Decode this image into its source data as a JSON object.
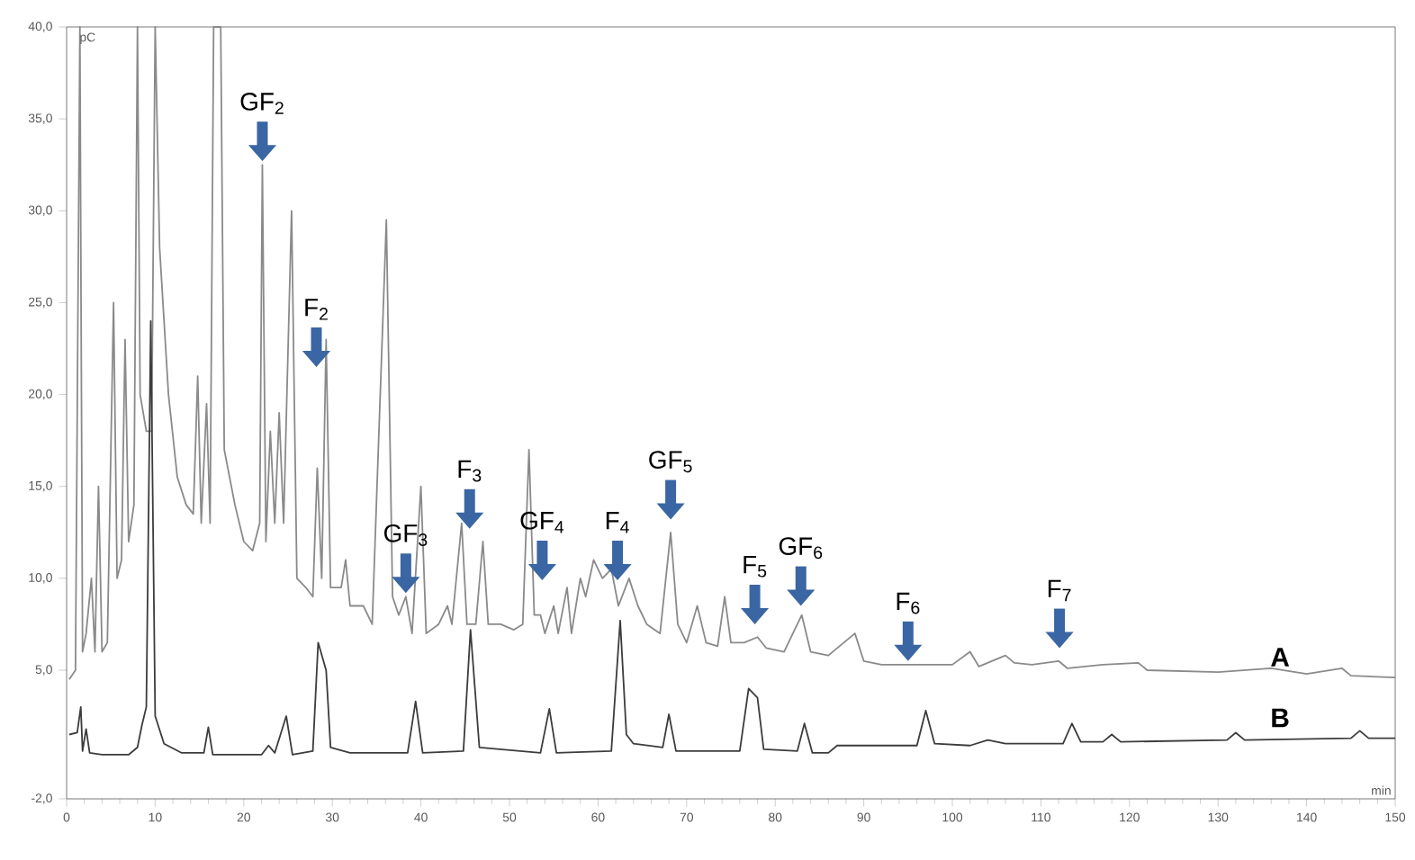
{
  "chart_data": {
    "type": "line",
    "xlabel": "min",
    "ylabel": "pC",
    "xlim": [
      0,
      150
    ],
    "ylim": [
      -2,
      40
    ],
    "xticks": [
      0,
      10,
      20,
      30,
      40,
      50,
      60,
      70,
      80,
      90,
      100,
      110,
      120,
      130,
      140,
      150
    ],
    "yticks": [
      {
        "value": -2,
        "label": "-2,0"
      },
      {
        "value": 5,
        "label": "5,0"
      },
      {
        "value": 10,
        "label": "10,0"
      },
      {
        "value": 15,
        "label": "15,0"
      },
      {
        "value": 20,
        "label": "20,0"
      },
      {
        "value": 25,
        "label": "25,0"
      },
      {
        "value": 30,
        "label": "30,0"
      },
      {
        "value": 35,
        "label": "35,0"
      },
      {
        "value": 40,
        "label": "40,0"
      }
    ],
    "grid": false,
    "series": [
      {
        "name": "A",
        "color": "#8a8a8a",
        "x": [
          0.3,
          1.0,
          1.5,
          1.8,
          2.2,
          2.8,
          3.2,
          3.6,
          4.0,
          4.6,
          5.3,
          5.7,
          6.2,
          6.6,
          7.0,
          7.6,
          8.0,
          8.3,
          9.0,
          9.6,
          10.0,
          10.5,
          11.5,
          12.5,
          13.5,
          14.3,
          14.8,
          15.2,
          15.8,
          16.2,
          16.6,
          17.4,
          17.8,
          19,
          20,
          21,
          21.8,
          22.1,
          22.5,
          23.0,
          23.5,
          24.0,
          24.5,
          25.4,
          26,
          27,
          27.8,
          28.3,
          28.8,
          29.3,
          29.8,
          31,
          31.5,
          32,
          33.5,
          34.5,
          36.1,
          36.8,
          37.5,
          38.3,
          39,
          40.0,
          40.6,
          42,
          43,
          43.5,
          44.6,
          45.2,
          46.2,
          47,
          47.6,
          49,
          50.5,
          51.5,
          52.2,
          52.8,
          53.5,
          54,
          55,
          55.5,
          56.5,
          57,
          58,
          58.6,
          59.5,
          60.5,
          61.5,
          62.3,
          63.5,
          64.5,
          65.5,
          67,
          68.2,
          69,
          70,
          71.2,
          72.2,
          73.5,
          74.3,
          75,
          76.5,
          78,
          79,
          81,
          83,
          84,
          86,
          89,
          90,
          92,
          95,
          100,
          102,
          103,
          106,
          107,
          109,
          112,
          113,
          117,
          121,
          122,
          130,
          136,
          140,
          144,
          145,
          150
        ],
        "values": [
          4.5,
          5.0,
          40,
          6,
          7,
          10,
          6,
          15,
          6,
          6.5,
          25,
          10,
          11,
          23,
          12,
          14,
          40,
          20,
          18,
          18,
          40,
          28,
          20,
          15.5,
          14,
          13.5,
          21,
          13,
          19.5,
          13,
          40,
          40,
          17,
          14,
          12,
          11.5,
          13,
          32.5,
          12,
          18,
          13,
          19,
          13,
          30,
          10,
          9.5,
          9,
          16,
          10,
          23,
          9.5,
          9.5,
          11,
          8.5,
          8.5,
          7.5,
          29.5,
          9,
          8,
          9,
          7,
          15,
          7,
          7.5,
          8.5,
          7.5,
          13,
          7.5,
          7.5,
          12,
          7.5,
          7.5,
          7.2,
          7.5,
          17,
          8,
          8,
          7,
          8.5,
          7,
          9.5,
          7,
          10,
          9,
          11,
          10,
          10.5,
          8.5,
          10,
          8.5,
          7.5,
          7,
          12.5,
          7.5,
          6.5,
          8.5,
          6.5,
          6.3,
          9,
          6.5,
          6.5,
          6.8,
          6.2,
          6,
          8,
          6,
          5.8,
          7,
          5.5,
          5.3,
          5.3,
          5.3,
          6,
          5.2,
          5.8,
          5.4,
          5.3,
          5.5,
          5.1,
          5.3,
          5.4,
          5,
          4.9,
          5.1,
          4.8,
          5.1,
          4.7,
          4.6
        ]
      },
      {
        "name": "B",
        "color": "#3c3c3c",
        "x": [
          0.3,
          1.2,
          1.6,
          1.8,
          2.2,
          2.6,
          4,
          7,
          8,
          8.5,
          9.0,
          9.5,
          10.0,
          11,
          13,
          15.5,
          16,
          16.5,
          22,
          22.8,
          23.5,
          24.8,
          25.5,
          27.8,
          28.4,
          29.3,
          29.8,
          32,
          38.5,
          39.4,
          40.2,
          44.8,
          45.6,
          46.6,
          53.5,
          54.5,
          55.3,
          61.5,
          62.5,
          63.2,
          64,
          67.3,
          68,
          68.8,
          76,
          77,
          78,
          78.7,
          82.5,
          83.3,
          84.2,
          86,
          87,
          96,
          97,
          98,
          102,
          104,
          106,
          112.5,
          113.5,
          114.5,
          117,
          118,
          119,
          131,
          132,
          133,
          145,
          146,
          147,
          150
        ],
        "values": [
          1.5,
          1.6,
          3,
          0.6,
          1.8,
          0.5,
          0.4,
          0.4,
          0.8,
          2,
          3,
          24,
          2.5,
          1.0,
          0.5,
          0.5,
          1.9,
          0.4,
          0.4,
          0.9,
          0.5,
          2.5,
          0.4,
          0.6,
          6.5,
          5,
          0.8,
          0.5,
          0.5,
          3.3,
          0.5,
          0.6,
          7.2,
          0.8,
          0.5,
          2.9,
          0.5,
          0.6,
          7.7,
          1.5,
          1,
          0.8,
          2.6,
          0.6,
          0.6,
          4,
          3.5,
          0.7,
          0.6,
          2.1,
          0.5,
          0.5,
          0.9,
          0.9,
          2.8,
          1,
          0.9,
          1.2,
          1,
          1.0,
          2.1,
          1.1,
          1.1,
          1.5,
          1.1,
          1.2,
          1.6,
          1.2,
          1.3,
          1.7,
          1.3,
          1.3
        ]
      }
    ],
    "annotations": [
      {
        "text": "GF$_{2}$",
        "x": 22.1,
        "y": 32.5
      },
      {
        "text": "F$_{2}$",
        "x": 28.2,
        "y": 21.3
      },
      {
        "text": "GF$_{3}$",
        "x": 38.3,
        "y": 9
      },
      {
        "text": "F$_{3}$",
        "x": 45.5,
        "y": 12.5
      },
      {
        "text": "GF$_{4}$",
        "x": 53.7,
        "y": 9.7
      },
      {
        "text": "F$_{4}$",
        "x": 62.2,
        "y": 9.7
      },
      {
        "text": "GF$_{5}$",
        "x": 68.2,
        "y": 13
      },
      {
        "text": "F$_{5}$",
        "x": 77.7,
        "y": 7.3
      },
      {
        "text": "GF$_{6}$",
        "x": 82.9,
        "y": 8.3
      },
      {
        "text": "F$_{6}$",
        "x": 95,
        "y": 5.3
      },
      {
        "text": "F$_{7}$",
        "x": 112.1,
        "y": 6.0
      }
    ]
  }
}
